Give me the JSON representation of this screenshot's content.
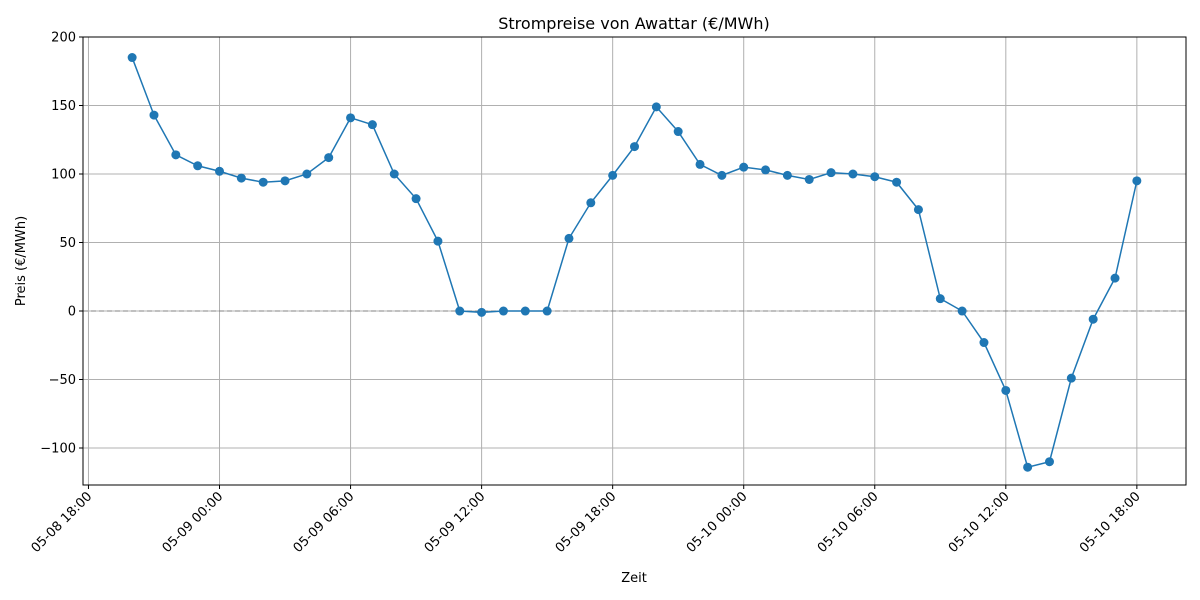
{
  "chart_data": {
    "type": "line",
    "title": "Strompreise von Awattar (€/MWh)",
    "xlabel": "Zeit",
    "ylabel": "Preis (€/MWh)",
    "x_start": "2024-05-08 20:00",
    "x_step_hours": 1,
    "x_range": [
      "2024-05-08 17:45",
      "2024-05-10 20:15"
    ],
    "ylim": [
      -127,
      200
    ],
    "y_ticks": [
      200,
      150,
      100,
      50,
      0,
      -50,
      -100
    ],
    "y_tick_labels": [
      "200",
      "150",
      "100",
      "50",
      "0",
      "−50",
      "−100"
    ],
    "x_ticks": [
      "2024-05-08 18:00",
      "2024-05-09 00:00",
      "2024-05-09 06:00",
      "2024-05-09 12:00",
      "2024-05-09 18:00",
      "2024-05-10 00:00",
      "2024-05-10 06:00",
      "2024-05-10 12:00",
      "2024-05-10 18:00"
    ],
    "x_tick_labels": [
      "05-08 18:00",
      "05-09 00:00",
      "05-09 06:00",
      "05-09 12:00",
      "05-09 18:00",
      "05-10 00:00",
      "05-10 06:00",
      "05-10 12:00",
      "05-10 18:00"
    ],
    "grid": true,
    "reference_line_y": 0,
    "colors": {
      "line": "#1f77b4",
      "grid": "#b0b0b0",
      "zero_line": "#808080"
    },
    "series": [
      {
        "values": [
          185,
          143,
          114,
          106,
          102,
          97,
          94,
          95,
          100,
          112,
          141,
          136,
          100,
          82,
          51,
          0,
          -1,
          0,
          0,
          0,
          53,
          79,
          99,
          120,
          149,
          131,
          107,
          99,
          105,
          103,
          99,
          96,
          101,
          100,
          98,
          94,
          74,
          9,
          0,
          -23,
          -58,
          -114,
          -110,
          -49,
          -6,
          24,
          95
        ]
      }
    ]
  }
}
